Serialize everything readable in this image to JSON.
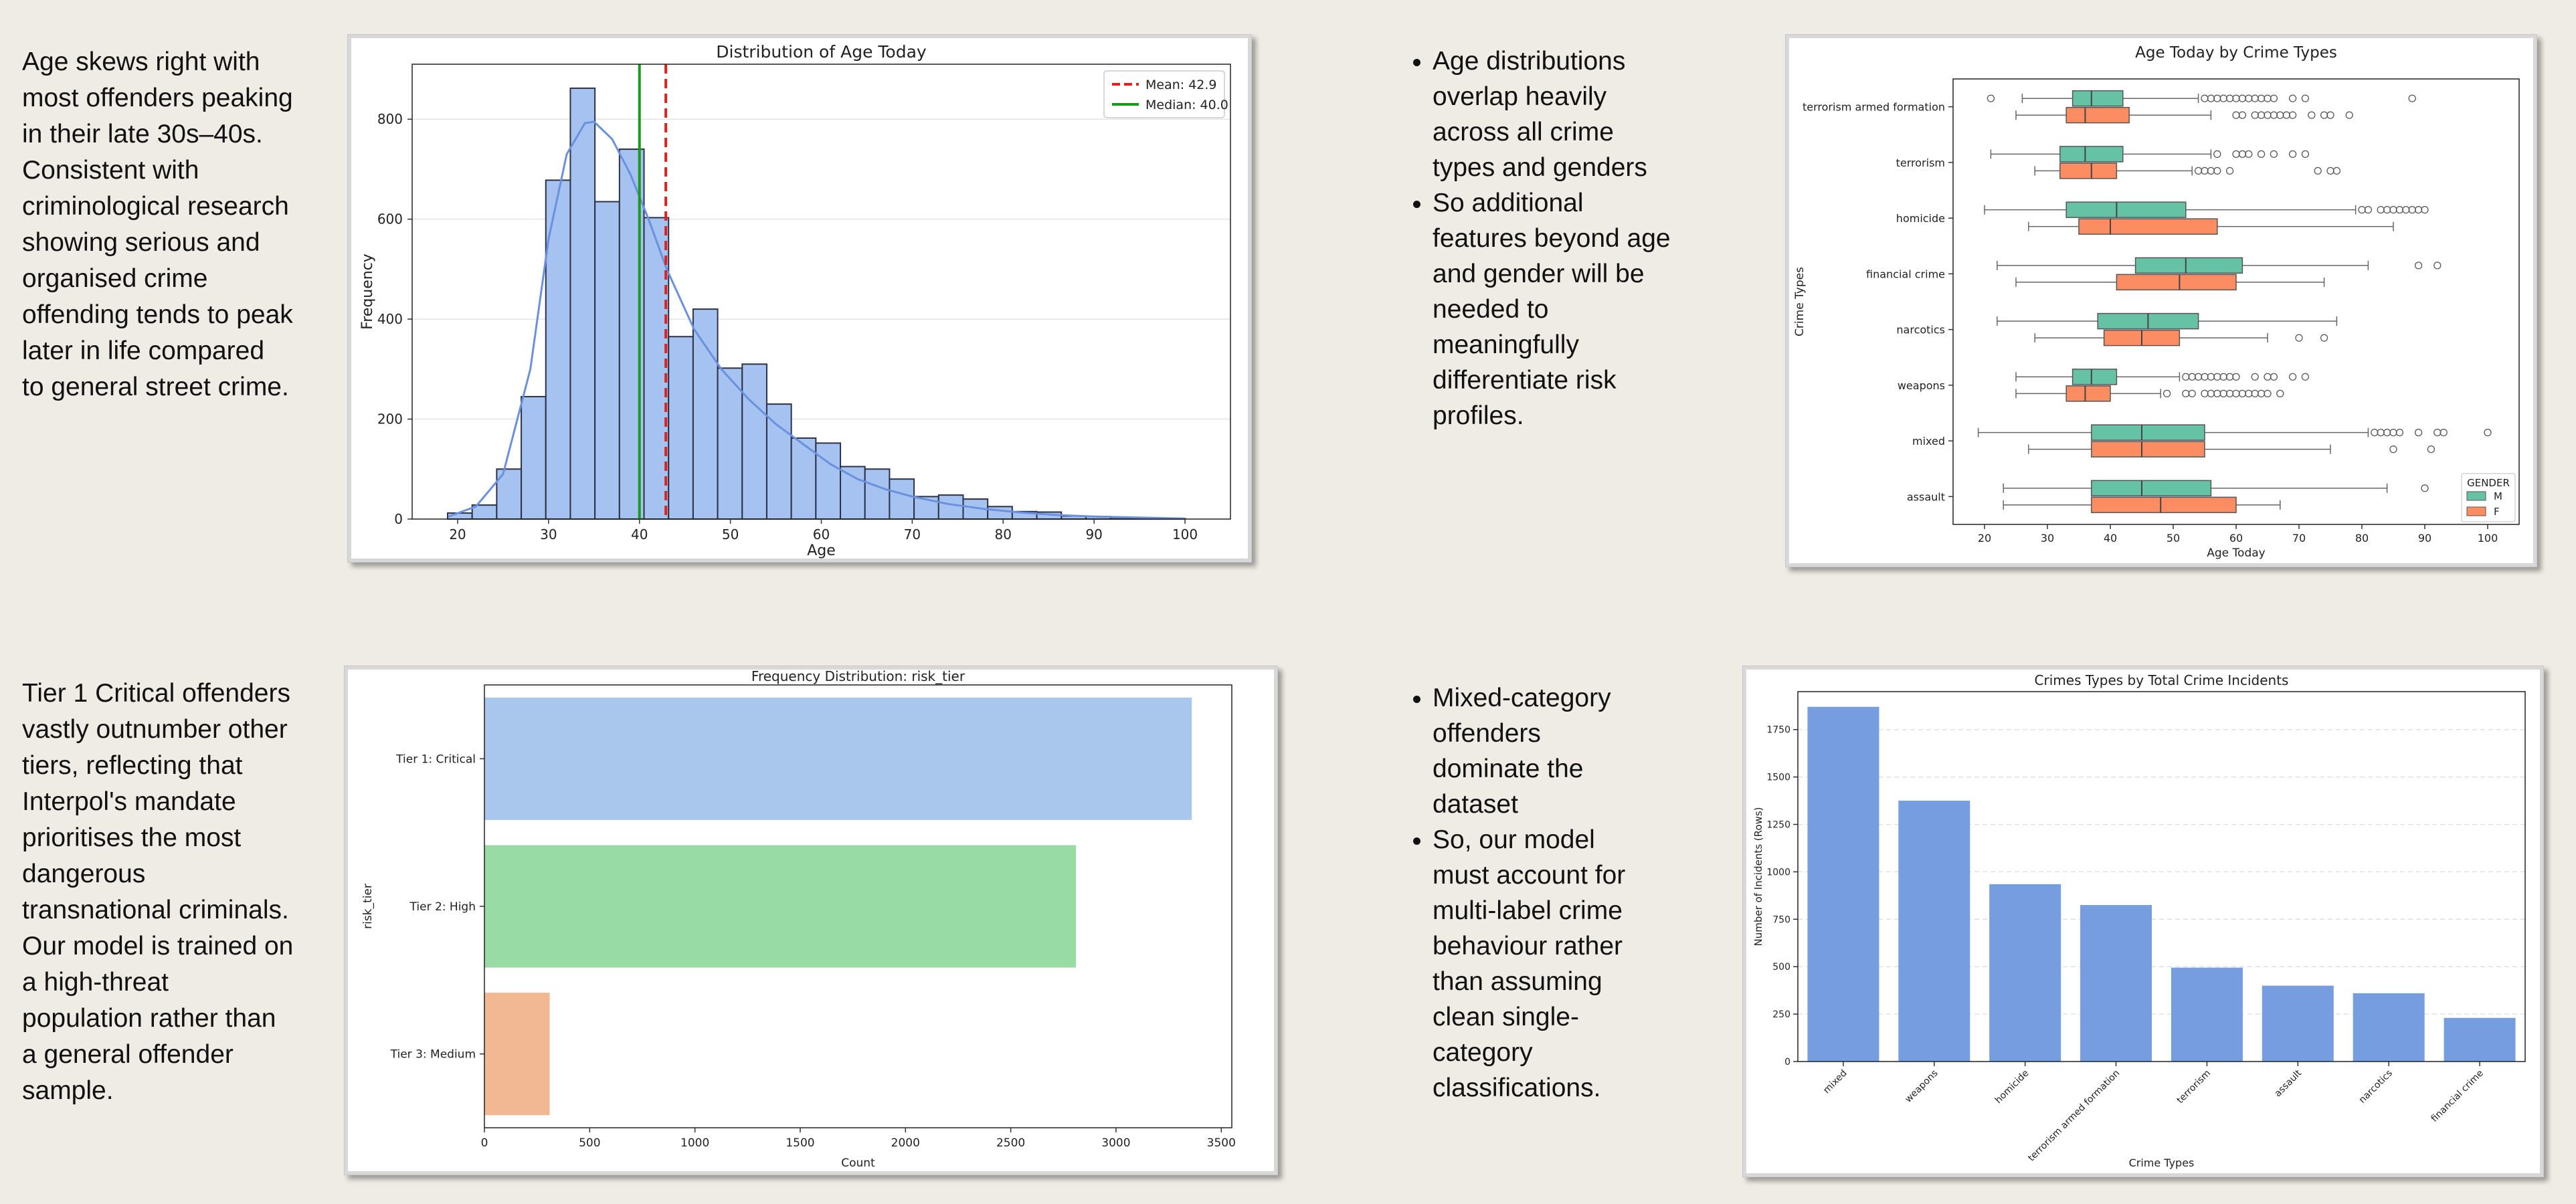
{
  "text_blocks": {
    "age_note": [
      "Age skews right with",
      "most offenders peaking",
      "in their late 30s–40s.",
      "Consistent with",
      "criminological research",
      "showing serious and",
      "organised crime",
      "offending tends to peak",
      "later in life compared",
      "to general street crime."
    ],
    "tier_note": [
      "Tier 1 Critical offenders",
      "vastly outnumber other",
      "tiers, reflecting that",
      "Interpol's mandate",
      "prioritises the most",
      "dangerous",
      "transnational criminals.",
      "Our model is trained on",
      "a high-threat",
      "population rather than",
      "a general offender",
      "sample."
    ],
    "bullets_top": [
      [
        "Age distributions",
        "overlap heavily",
        "across all crime",
        "types and genders"
      ],
      [
        "So additional",
        "features beyond age",
        "and gender will be",
        "needed to",
        "meaningfully",
        "differentiate risk",
        "profiles."
      ]
    ],
    "bullets_bottom": [
      [
        "Mixed-category",
        "offenders",
        "dominate the",
        "dataset"
      ],
      [
        "So, our model",
        "must account for",
        "multi-label crime",
        "behaviour rather",
        "than assuming",
        "clean single-",
        "category",
        "classifications."
      ]
    ]
  },
  "chart_data": [
    {
      "type": "bar",
      "subtype": "histogram",
      "title": "Distribution of Age Today",
      "xlabel": "Age",
      "ylabel": "Frequency",
      "xlim": [
        15,
        105
      ],
      "ylim": [
        0,
        910
      ],
      "xticks": [
        20,
        30,
        40,
        50,
        60,
        70,
        80,
        90,
        100
      ],
      "yticks": [
        0,
        200,
        400,
        600,
        800
      ],
      "bins": [
        [
          18.9,
          21.6
        ],
        [
          21.6,
          24.3
        ],
        [
          24.3,
          27.0
        ],
        [
          27.0,
          29.7
        ],
        [
          29.7,
          32.4
        ],
        [
          32.4,
          35.1
        ],
        [
          35.1,
          37.8
        ],
        [
          37.8,
          40.5
        ],
        [
          40.5,
          43.2
        ],
        [
          43.2,
          45.9
        ],
        [
          45.9,
          48.6
        ],
        [
          48.6,
          51.3
        ],
        [
          51.3,
          54.0
        ],
        [
          54.0,
          56.7
        ],
        [
          56.7,
          59.4
        ],
        [
          59.4,
          62.1
        ],
        [
          62.1,
          64.8
        ],
        [
          64.8,
          67.5
        ],
        [
          67.5,
          70.2
        ],
        [
          70.2,
          72.9
        ],
        [
          72.9,
          75.6
        ],
        [
          75.6,
          78.3
        ],
        [
          78.3,
          81.0
        ],
        [
          81.0,
          83.7
        ],
        [
          83.7,
          86.4
        ],
        [
          86.4,
          89.1
        ],
        [
          89.1,
          91.8
        ],
        [
          91.8,
          94.5
        ],
        [
          94.5,
          97.2
        ],
        [
          97.2,
          100.0
        ]
      ],
      "counts": [
        12,
        28,
        100,
        245,
        678,
        862,
        635,
        740,
        603,
        365,
        420,
        302,
        310,
        230,
        162,
        152,
        105,
        100,
        80,
        45,
        48,
        40,
        25,
        15,
        14,
        6,
        5,
        3,
        2,
        1
      ],
      "kde": [
        [
          19,
          5
        ],
        [
          22,
          25
        ],
        [
          25,
          90
        ],
        [
          28,
          300
        ],
        [
          30,
          560
        ],
        [
          32,
          730
        ],
        [
          34,
          792
        ],
        [
          35,
          795
        ],
        [
          37,
          760
        ],
        [
          39,
          690
        ],
        [
          41,
          600
        ],
        [
          43,
          500
        ],
        [
          46,
          380
        ],
        [
          49,
          300
        ],
        [
          52,
          240
        ],
        [
          55,
          190
        ],
        [
          58,
          150
        ],
        [
          61,
          110
        ],
        [
          64,
          80
        ],
        [
          67,
          60
        ],
        [
          70,
          45
        ],
        [
          74,
          30
        ],
        [
          78,
          20
        ],
        [
          82,
          13
        ],
        [
          86,
          8
        ],
        [
          90,
          5
        ],
        [
          95,
          3
        ],
        [
          100,
          1
        ]
      ],
      "mean": 42.9,
      "median": 40.0,
      "legend": [
        "Mean: 42.9",
        "Median: 40.0"
      ],
      "legend_position": "top-right",
      "grid": "y",
      "colors": {
        "bar": "#a6c2f0",
        "kde": "#6a90de",
        "mean": "#e3211c",
        "median": "#1a9a1a"
      }
    },
    {
      "type": "box",
      "orientation": "horizontal",
      "title": "Age Today by Crime Types",
      "xlabel": "Age Today",
      "ylabel": "Crime Types",
      "xlim": [
        15,
        105
      ],
      "xticks": [
        20,
        30,
        40,
        50,
        60,
        70,
        80,
        90,
        100
      ],
      "categories": [
        "terrorism armed formation",
        "terrorism",
        "homicide",
        "financial crime",
        "narcotics",
        "weapons",
        "mixed",
        "assault"
      ],
      "legend_title": "GENDER",
      "legend": [
        "M",
        "F"
      ],
      "legend_position": "bottom-right",
      "colors": {
        "M": "#66c2a5",
        "F": "#fc8d62"
      },
      "boxes": {
        "M": [
          {
            "q1": 34,
            "med": 37,
            "q3": 42,
            "lo": 26,
            "hi": 54,
            "out": [
              21,
              55,
              56,
              57,
              58,
              59,
              60,
              61,
              62,
              63,
              64,
              65,
              66,
              69,
              71,
              88
            ]
          },
          {
            "q1": 32,
            "med": 36,
            "q3": 42,
            "lo": 21,
            "hi": 56,
            "out": [
              57,
              60,
              61,
              62,
              64,
              66,
              69,
              71
            ]
          },
          {
            "q1": 33,
            "med": 41,
            "q3": 52,
            "lo": 20,
            "hi": 79,
            "out": [
              80,
              81,
              83,
              84,
              85,
              86,
              87,
              88,
              89,
              90
            ]
          },
          {
            "q1": 44,
            "med": 52,
            "q3": 61,
            "lo": 22,
            "hi": 81,
            "out": [
              89,
              92
            ]
          },
          {
            "q1": 38,
            "med": 46,
            "q3": 54,
            "lo": 22,
            "hi": 76,
            "out": []
          },
          {
            "q1": 34,
            "med": 37,
            "q3": 41,
            "lo": 25,
            "hi": 51,
            "out": [
              52,
              53,
              54,
              55,
              56,
              57,
              58,
              59,
              60,
              63,
              65,
              66,
              69,
              71
            ]
          },
          {
            "q1": 37,
            "med": 45,
            "q3": 55,
            "lo": 19,
            "hi": 81,
            "out": [
              82,
              83,
              84,
              85,
              86,
              89,
              92,
              93,
              100
            ]
          },
          {
            "q1": 37,
            "med": 45,
            "q3": 56,
            "lo": 23,
            "hi": 84,
            "out": [
              90
            ]
          }
        ],
        "F": [
          {
            "q1": 33,
            "med": 36,
            "q3": 43,
            "lo": 25,
            "hi": 56,
            "out": [
              60,
              61,
              63,
              64,
              65,
              66,
              67,
              68,
              69,
              72,
              74,
              75,
              78
            ]
          },
          {
            "q1": 32,
            "med": 37,
            "q3": 41,
            "lo": 28,
            "hi": 53,
            "out": [
              54,
              55,
              56,
              57,
              59,
              73,
              75,
              76
            ]
          },
          {
            "q1": 35,
            "med": 40,
            "q3": 57,
            "lo": 27,
            "hi": 85,
            "out": []
          },
          {
            "q1": 41,
            "med": 51,
            "q3": 60,
            "lo": 25,
            "hi": 74,
            "out": []
          },
          {
            "q1": 39,
            "med": 45,
            "q3": 51,
            "lo": 28,
            "hi": 65,
            "out": [
              70,
              74
            ]
          },
          {
            "q1": 33,
            "med": 36,
            "q3": 40,
            "lo": 25,
            "hi": 48,
            "out": [
              49,
              52,
              53,
              55,
              56,
              57,
              58,
              59,
              60,
              61,
              62,
              63,
              64,
              65,
              67
            ]
          },
          {
            "q1": 37,
            "med": 45,
            "q3": 55,
            "lo": 27,
            "hi": 75,
            "out": [
              85,
              91
            ]
          },
          {
            "q1": 37,
            "med": 48,
            "q3": 60,
            "lo": 23,
            "hi": 67,
            "out": []
          }
        ]
      }
    },
    {
      "type": "bar",
      "orientation": "horizontal",
      "title": "Frequency Distribution: risk_tier",
      "xlabel": "Count",
      "ylabel": "risk_tier",
      "xlim": [
        0,
        3550
      ],
      "xticks": [
        0,
        500,
        1000,
        1500,
        2000,
        2500,
        3000,
        3500
      ],
      "categories": [
        "Tier 1: Critical",
        "Tier 2: High",
        "Tier 3: Medium"
      ],
      "values": [
        3360,
        2810,
        310
      ],
      "colors": [
        "#a9c7ed",
        "#98dba4",
        "#f2b793"
      ]
    },
    {
      "type": "bar",
      "title": "Crimes Types by Total Crime Incidents",
      "xlabel": "Crime Types",
      "ylabel": "Number of Incidents (Rows)",
      "ylim": [
        0,
        1950
      ],
      "yticks": [
        0,
        250,
        500,
        750,
        1000,
        1250,
        1500,
        1750
      ],
      "categories": [
        "mixed",
        "weapons",
        "homicide",
        "terrorism armed formation",
        "terrorism",
        "assault",
        "narcotics",
        "financial crime"
      ],
      "values": [
        1870,
        1375,
        935,
        825,
        495,
        400,
        360,
        230
      ],
      "grid": "y",
      "colors": {
        "bar": "#759ddf"
      }
    }
  ]
}
